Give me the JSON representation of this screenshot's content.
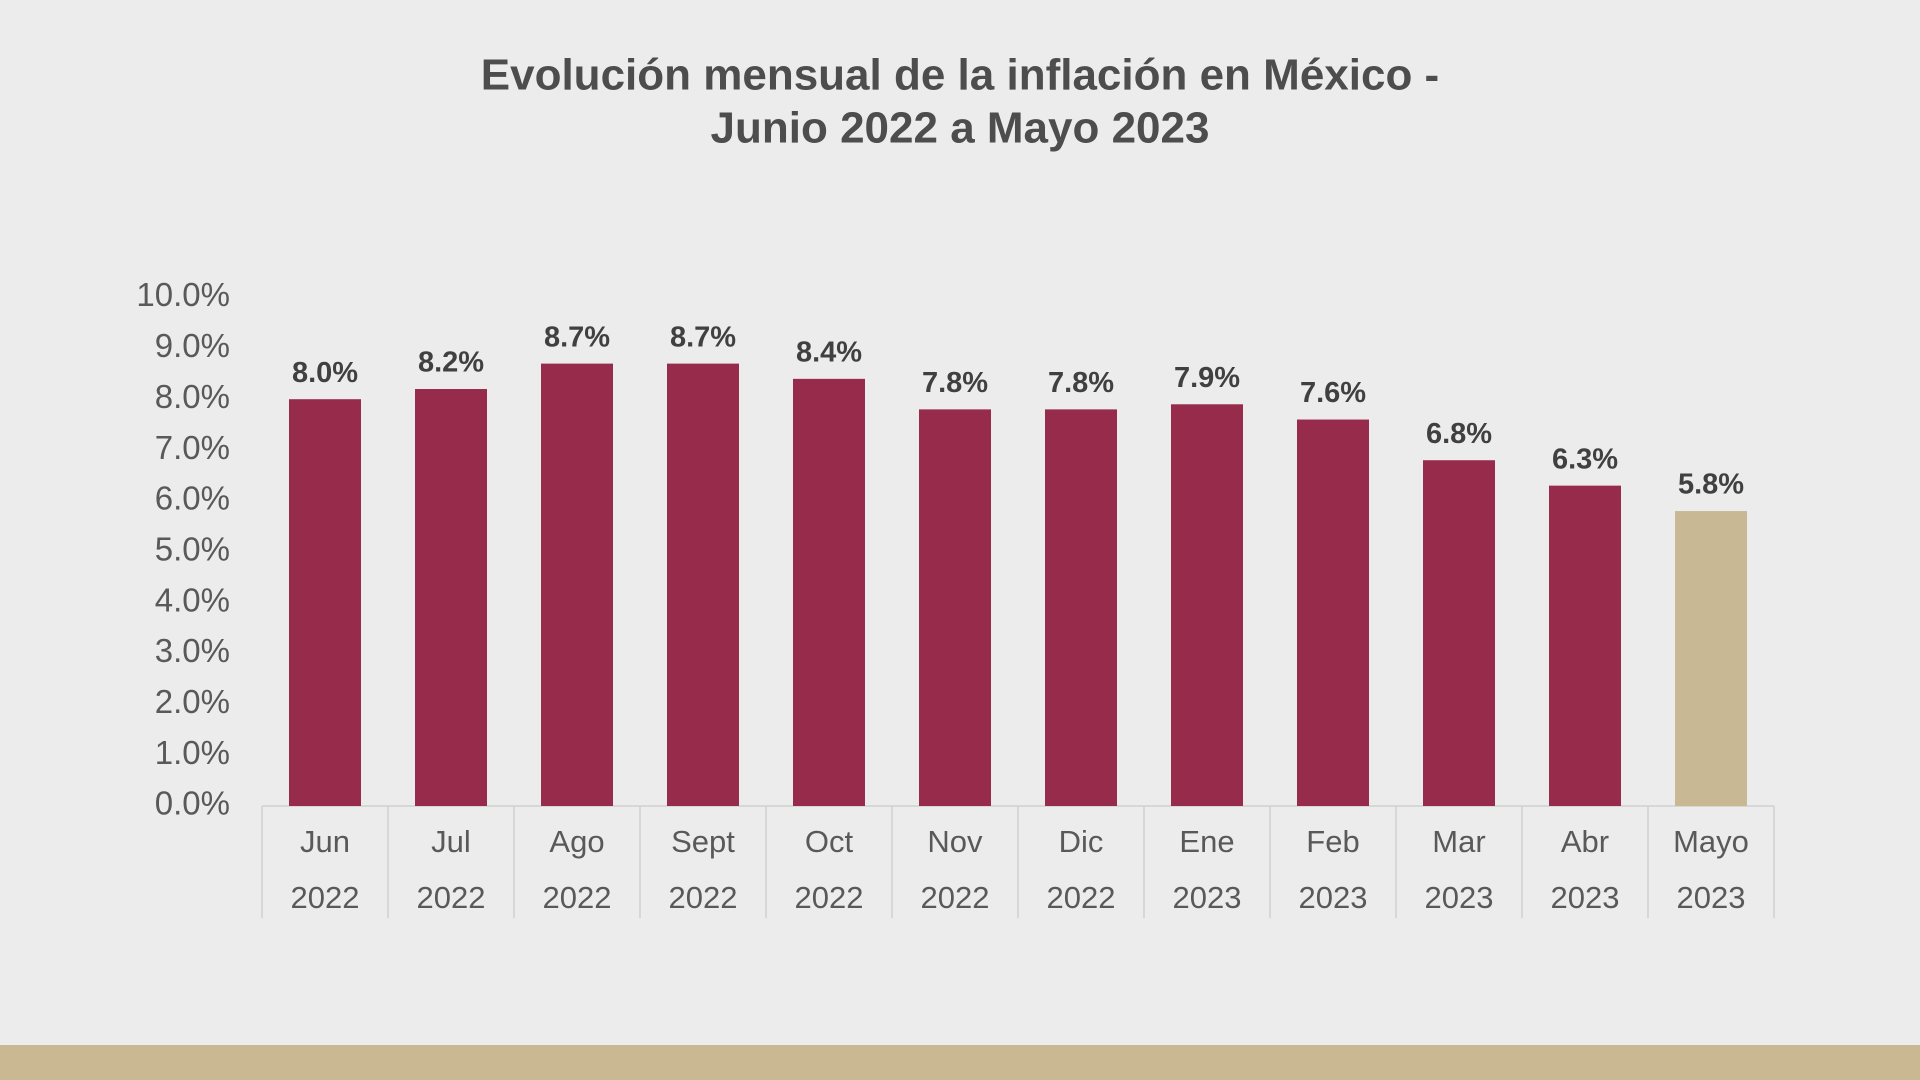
{
  "chart_data": {
    "type": "bar",
    "title": [
      "Evolución mensual de la inflación en México -",
      "Junio 2022 a Mayo 2023"
    ],
    "categories": [
      [
        "Jun",
        "2022"
      ],
      [
        "Jul",
        "2022"
      ],
      [
        "Ago",
        "2022"
      ],
      [
        "Sept",
        "2022"
      ],
      [
        "Oct",
        "2022"
      ],
      [
        "Nov",
        "2022"
      ],
      [
        "Dic",
        "2022"
      ],
      [
        "Ene",
        "2023"
      ],
      [
        "Feb",
        "2023"
      ],
      [
        "Mar",
        "2023"
      ],
      [
        "Abr",
        "2023"
      ],
      [
        "Mayo",
        "2023"
      ]
    ],
    "values": [
      8.0,
      8.2,
      8.7,
      8.7,
      8.4,
      7.8,
      7.8,
      7.9,
      7.6,
      6.8,
      6.3,
      5.8
    ],
    "value_labels": [
      "8.0%",
      "8.2%",
      "8.7%",
      "8.7%",
      "8.4%",
      "7.8%",
      "7.8%",
      "7.9%",
      "7.6%",
      "6.8%",
      "6.3%",
      "5.8%"
    ],
    "colors": [
      "#962b4b",
      "#962b4b",
      "#962b4b",
      "#962b4b",
      "#962b4b",
      "#962b4b",
      "#962b4b",
      "#962b4b",
      "#962b4b",
      "#962b4b",
      "#962b4b",
      "#c8b894"
    ],
    "ylim": [
      0,
      10
    ],
    "yticks": [
      {
        "value": 0,
        "label": "0.0%"
      },
      {
        "value": 1,
        "label": "1.0%"
      },
      {
        "value": 2,
        "label": "2.0%"
      },
      {
        "value": 3,
        "label": "3.0%"
      },
      {
        "value": 4,
        "label": "4.0%"
      },
      {
        "value": 5,
        "label": "5.0%"
      },
      {
        "value": 6,
        "label": "6.0%"
      },
      {
        "value": 7,
        "label": "7.0%"
      },
      {
        "value": 8,
        "label": "8.0%"
      },
      {
        "value": 9,
        "label": "9.0%"
      },
      {
        "value": 10,
        "label": "10.0%"
      }
    ],
    "grid": false
  }
}
